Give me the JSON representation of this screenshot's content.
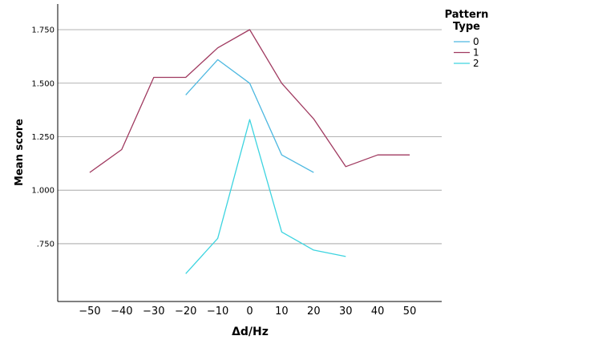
{
  "chart_data": {
    "type": "line",
    "xlabel": "Δd/Hz",
    "ylabel": "Mean score",
    "x_ticks": [
      -50,
      -40,
      -30,
      -20,
      -10,
      0,
      10,
      20,
      30,
      40,
      50
    ],
    "y_ticks": [
      0.75,
      1.0,
      1.25,
      1.5,
      1.75
    ],
    "y_tick_labels": [
      ".750",
      "1.000",
      "1.250",
      "1.500",
      "1.750"
    ],
    "xlim": [
      -60,
      60
    ],
    "ylim": [
      0.48,
      1.87
    ],
    "grid": "horizontal",
    "legend": {
      "title_lines": [
        "Pattern",
        "Type"
      ],
      "placement": "right"
    },
    "series": [
      {
        "name": "0",
        "color": "#4db8e0",
        "x": [
          -20,
          -10,
          0,
          10,
          20
        ],
        "y": [
          1.445,
          1.61,
          1.5,
          1.165,
          1.083
        ]
      },
      {
        "name": "1",
        "color": "#a03a60",
        "x": [
          -50,
          -40,
          -30,
          -20,
          -10,
          0,
          10,
          20,
          30,
          40,
          50
        ],
        "y": [
          1.083,
          1.19,
          1.527,
          1.527,
          1.665,
          1.75,
          1.5,
          1.333,
          1.11,
          1.165,
          1.165
        ]
      },
      {
        "name": "2",
        "color": "#3dd4e0",
        "x": [
          -20,
          -10,
          0,
          10,
          20,
          30
        ],
        "y": [
          0.61,
          0.775,
          1.33,
          0.805,
          0.72,
          0.69
        ]
      }
    ]
  }
}
